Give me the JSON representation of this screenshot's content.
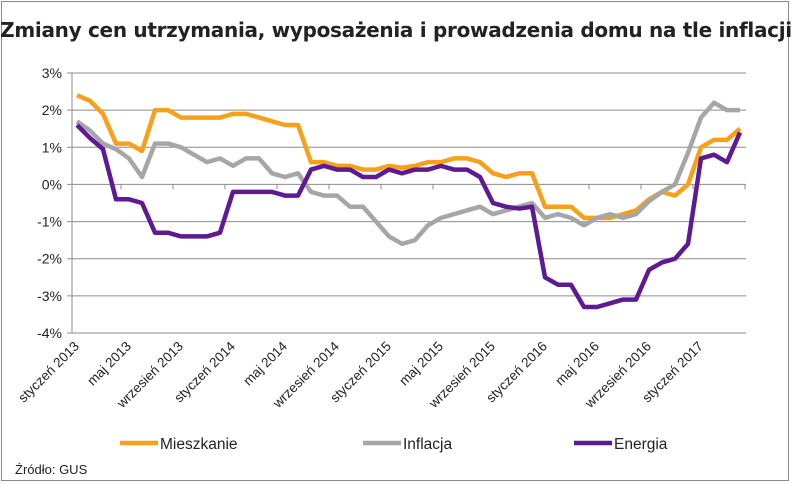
{
  "chart_data": {
    "type": "line",
    "title": "Zmiany cen utrzymania, wyposażenia i prowadzenia domu na tle inflacji",
    "xlabel": "",
    "ylabel": "",
    "ylim": [
      -4,
      3
    ],
    "y_ticks": [
      3,
      2,
      1,
      0,
      -1,
      -2,
      -3,
      -4
    ],
    "y_tick_labels": [
      "3%",
      "2%",
      "1%",
      "0%",
      "-1%",
      "-2%",
      "-3%",
      "-4%"
    ],
    "grid": true,
    "legend_position": "bottom",
    "x_tick_labels": [
      "styczeń 2013",
      "maj 2013",
      "wrzesień 2013",
      "styczeń 2014",
      "maj 2014",
      "wrzesień 2014",
      "styczeń 2015",
      "maj 2015",
      "wrzesień 2015",
      "styczeń 2016",
      "maj 2016",
      "wrzesień 2016",
      "styczeń 2017"
    ],
    "x_tick_every": 4,
    "series": [
      {
        "name": "Mieszkanie",
        "color": "#f7a11a",
        "values": [
          2.4,
          2.25,
          1.9,
          1.1,
          1.1,
          0.9,
          2.0,
          2.0,
          1.8,
          1.8,
          1.8,
          1.8,
          1.9,
          1.9,
          1.8,
          1.7,
          1.6,
          1.6,
          0.6,
          0.6,
          0.5,
          0.5,
          0.4,
          0.4,
          0.5,
          0.45,
          0.5,
          0.6,
          0.6,
          0.7,
          0.7,
          0.6,
          0.3,
          0.2,
          0.3,
          0.3,
          -0.6,
          -0.6,
          -0.6,
          -0.9,
          -0.9,
          -0.9,
          -0.8,
          -0.7,
          -0.4,
          -0.2,
          -0.3,
          0.0,
          1.0,
          1.2,
          1.2,
          1.5
        ]
      },
      {
        "name": "Inflacja",
        "color": "#a6a6a6",
        "values": [
          1.7,
          1.45,
          1.1,
          0.95,
          0.7,
          0.2,
          1.1,
          1.1,
          1.0,
          0.8,
          0.6,
          0.7,
          0.5,
          0.7,
          0.7,
          0.3,
          0.2,
          0.3,
          -0.2,
          -0.3,
          -0.3,
          -0.6,
          -0.6,
          -1.0,
          -1.4,
          -1.6,
          -1.5,
          -1.1,
          -0.9,
          -0.8,
          -0.7,
          -0.6,
          -0.8,
          -0.7,
          -0.6,
          -0.5,
          -0.9,
          -0.8,
          -0.9,
          -1.1,
          -0.9,
          -0.8,
          -0.9,
          -0.8,
          -0.45,
          -0.2,
          0.0,
          0.85,
          1.8,
          2.2,
          2.0,
          2.0
        ]
      },
      {
        "name": "Energia",
        "color": "#5e1a93",
        "values": [
          1.6,
          1.25,
          0.95,
          -0.4,
          -0.4,
          -0.5,
          -1.3,
          -1.3,
          -1.4,
          -1.4,
          -1.4,
          -1.3,
          -0.2,
          -0.2,
          -0.2,
          -0.2,
          -0.3,
          -0.3,
          0.4,
          0.5,
          0.4,
          0.4,
          0.2,
          0.2,
          0.4,
          0.3,
          0.4,
          0.4,
          0.5,
          0.4,
          0.4,
          0.2,
          -0.5,
          -0.6,
          -0.65,
          -0.6,
          -2.5,
          -2.7,
          -2.7,
          -3.3,
          -3.3,
          -3.2,
          -3.1,
          -3.1,
          -2.3,
          -2.1,
          -2.0,
          -1.6,
          0.7,
          0.8,
          0.6,
          1.4
        ]
      }
    ]
  },
  "source": "Źródło: GUS"
}
